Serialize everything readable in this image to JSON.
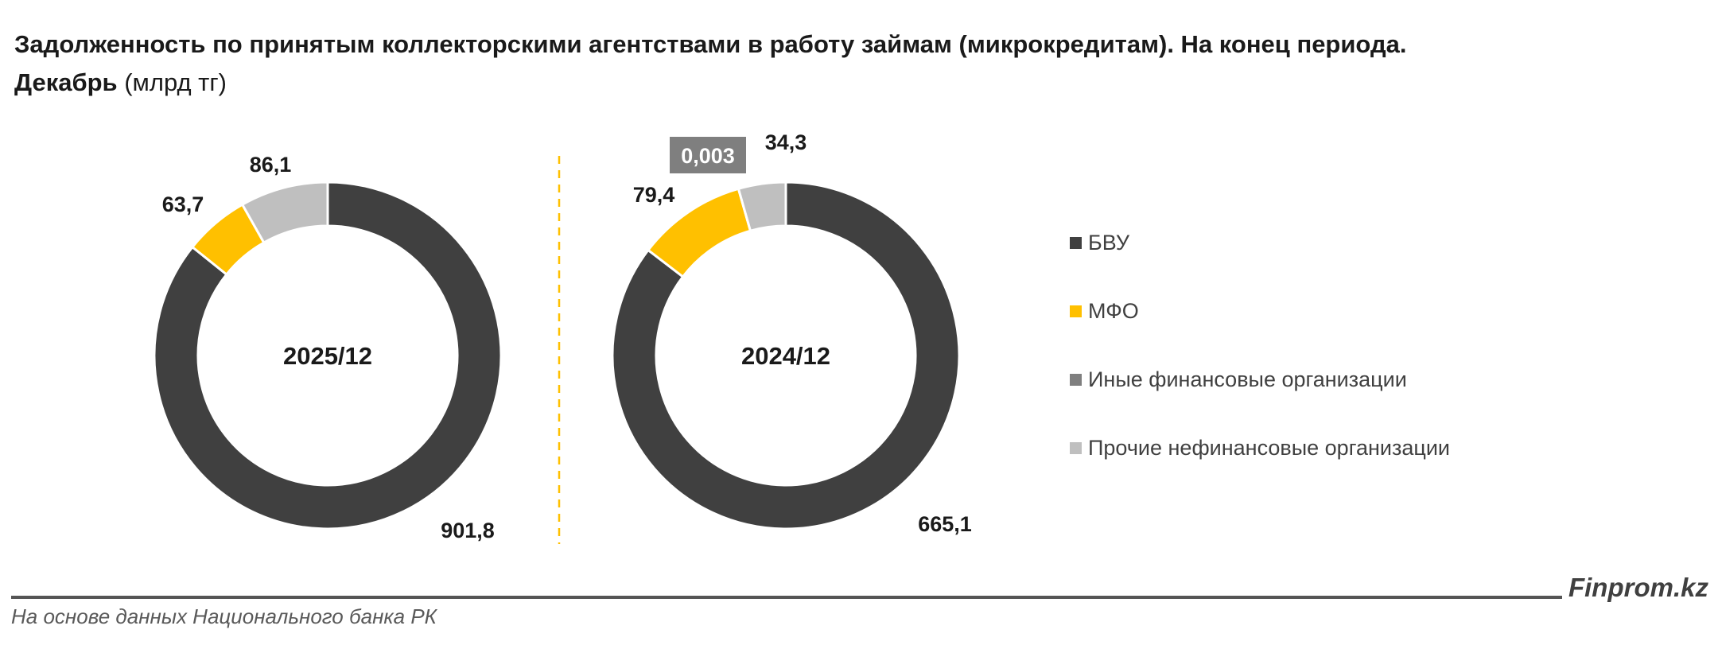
{
  "title": {
    "line1": "Задолженность по принятым коллекторскими агентствами в работу займам (микрокредитам). На конец периода.",
    "line2_bold": "Декабрь",
    "line2_rest": " (млрд тг)"
  },
  "chart_data": {
    "type": "pie",
    "unit": "млрд тг",
    "categories": [
      "БВУ",
      "МФО",
      "Иные финансовые организации",
      "Прочие нефинансовые организации"
    ],
    "colors": [
      "#404040",
      "#ffc000",
      "#7f7f7f",
      "#bfbfbf"
    ],
    "series": [
      {
        "name": "2025/12",
        "values": [
          901.8,
          63.7,
          0,
          86.1
        ],
        "labels": [
          "901,8",
          "63,7",
          "",
          "86,1"
        ]
      },
      {
        "name": "2024/12",
        "values": [
          665.1,
          79.4,
          0.003,
          34.3
        ],
        "labels": [
          "665,1",
          "79,4",
          "0,003",
          "34,3"
        ]
      }
    ],
    "legend_position": "right"
  },
  "footer": {
    "brand": "Finprom.kz",
    "source": "На основе данных Национального банка РК"
  }
}
